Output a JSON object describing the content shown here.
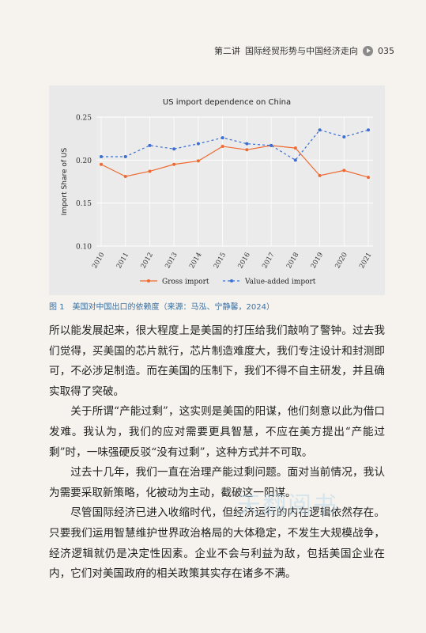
{
  "header": {
    "section": "第二讲",
    "title": "国际经贸形势与中国经济走向",
    "page_number": "035"
  },
  "chart_data": {
    "type": "line",
    "title": "US import dependence on China",
    "ylabel": "Import Share of US",
    "xlabel": "",
    "ylim": [
      0.1,
      0.25
    ],
    "yticks": [
      "0.10",
      "0.15",
      "0.20",
      "0.25"
    ],
    "categories": [
      "2010",
      "2011",
      "2012",
      "2013",
      "2014",
      "2015",
      "2016",
      "2017",
      "2018",
      "2019",
      "2020",
      "2021"
    ],
    "grid": true,
    "legend": "bottom",
    "series": [
      {
        "name": "Gross import",
        "color": "#ee6a2f",
        "style": "solid",
        "values": [
          0.195,
          0.181,
          0.187,
          0.195,
          0.199,
          0.216,
          0.212,
          0.217,
          0.214,
          0.182,
          0.188,
          0.18
        ]
      },
      {
        "name": "Value-added import",
        "color": "#3d6fd0",
        "style": "dashed",
        "values": [
          0.204,
          0.204,
          0.217,
          0.213,
          0.219,
          0.226,
          0.219,
          0.217,
          0.2,
          0.235,
          0.227,
          0.235
        ]
      }
    ]
  },
  "caption": "图 1　美国对中国出口的依赖度（来源：马泓、宁静馨，2024）",
  "paragraphs": [
    "所以能发展起来，很大程度上是美国的打压给我们敲响了警钟。过去我们觉得，买美国的芯片就行，芯片制造难度大，我们专注设计和封测即可，不必涉足制造。而在美国的压制下，我们不得不自主研发，并且确实取得了突破。",
    "关于所谓“产能过剩”，这实则是美国的阳谋，他们刻意以此为借口发难。我认为，我们的应对需要更具智慧，不应在美方提出“产能过剩”时，一味强硬反驳“没有过剩”，这种方式并不可取。",
    "过去十几年，我们一直在治理产能过剩问题。面对当前情况，我认为需要采取新策略，化被动为主动，截破这一阳谋。",
    "尽管国际经济已进入收缩时代，但经济运行的内在逻辑依然存在。只要我们运用智慧维护世界政治格局的大体稳定，不发生大规模战争，经济逻辑就仍是决定性因素。企业不会与利益为敌，包括美国企业在内，它们对美国政府的相关政策其实存在诸多不满。"
  ],
  "watermark": "天翻阅书"
}
